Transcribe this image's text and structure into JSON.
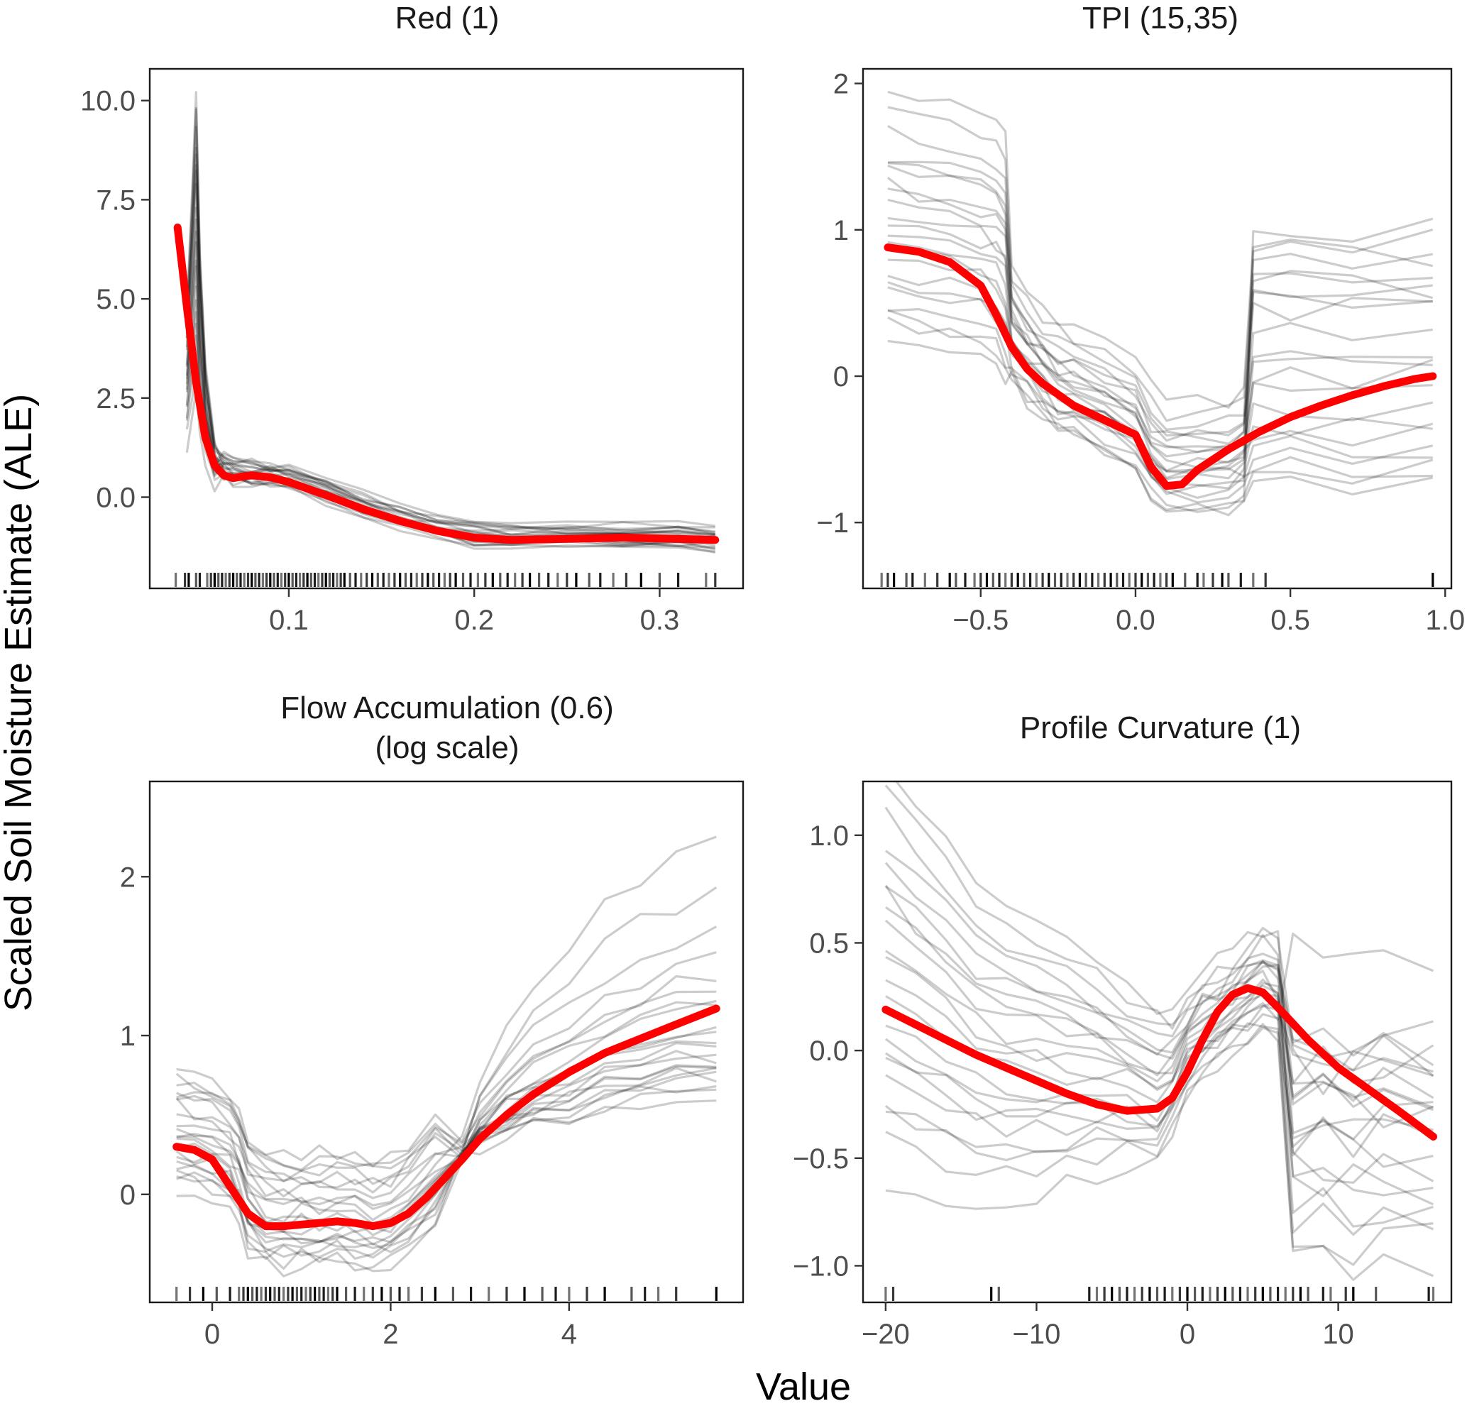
{
  "ylabel": "Scaled Soil Moisture Estimate (ALE)",
  "xlabel": "Value",
  "colors": {
    "ale_line": "#ff0000",
    "ice_lines": "#000000",
    "rug": "#000000",
    "frame": "#1a1a1a"
  },
  "chart_data": [
    {
      "type": "line",
      "title": "Red (1)",
      "xlim": [
        0.025,
        0.345
      ],
      "ylim": [
        -2.3,
        10.8
      ],
      "x_ticks": [
        0.1,
        0.2,
        0.3
      ],
      "x_tick_labels": [
        "0.1",
        "0.2",
        "0.3"
      ],
      "y_ticks": [
        0,
        2.5,
        5,
        7.5,
        10
      ],
      "y_tick_labels": [
        "0.0",
        "2.5",
        "5.0",
        "7.5",
        "10.0"
      ],
      "ale_curve": {
        "x": [
          0.04,
          0.045,
          0.05,
          0.055,
          0.06,
          0.065,
          0.07,
          0.075,
          0.08,
          0.09,
          0.1,
          0.12,
          0.14,
          0.16,
          0.18,
          0.2,
          0.22,
          0.25,
          0.28,
          0.31,
          0.33
        ],
        "y": [
          6.8,
          4.8,
          2.9,
          1.5,
          0.8,
          0.55,
          0.48,
          0.52,
          0.55,
          0.5,
          0.38,
          0.05,
          -0.3,
          -0.6,
          -0.85,
          -1.02,
          -1.08,
          -1.05,
          -1.02,
          -1.05,
          -1.08
        ]
      },
      "ice_shape": {
        "x": [
          0.045,
          0.048,
          0.05,
          0.052,
          0.055,
          0.06,
          0.065,
          0.07,
          0.08,
          0.09,
          0.1,
          0.12,
          0.14,
          0.16,
          0.18,
          0.2,
          0.22,
          0.25,
          0.28,
          0.31,
          0.33
        ],
        "y": [
          4.5,
          7.5,
          9.7,
          6.0,
          3.2,
          1.2,
          0.7,
          0.6,
          0.55,
          0.52,
          0.42,
          0.1,
          -0.25,
          -0.55,
          -0.8,
          -1.0,
          -1.06,
          -1.05,
          -1.04,
          -1.06,
          -1.08
        ],
        "offsets": [
          -0.5,
          -0.4,
          -0.3,
          -0.25,
          -0.2,
          -0.15,
          -0.1,
          -0.05,
          0,
          0.05,
          0.1,
          0.15,
          0.2,
          0.25,
          0.3,
          0.35,
          0.4,
          0.45,
          0.5,
          0.55,
          0.6,
          0.7
        ],
        "early_scale": [
          0.3,
          0.5,
          0.7,
          0.9,
          1.0,
          0.85,
          0.6,
          0.45,
          0.75,
          1.05,
          0.35,
          0.8,
          0.95,
          0.55,
          0.65,
          1.0,
          0.4,
          0.9,
          0.7,
          0.5,
          0.85,
          0.6
        ]
      },
      "rug": [
        0.039,
        0.044,
        0.046,
        0.05,
        0.052,
        0.056,
        0.058,
        0.06,
        0.062,
        0.064,
        0.066,
        0.068,
        0.07,
        0.072,
        0.074,
        0.076,
        0.078,
        0.08,
        0.082,
        0.084,
        0.086,
        0.088,
        0.09,
        0.092,
        0.094,
        0.096,
        0.098,
        0.1,
        0.102,
        0.104,
        0.106,
        0.108,
        0.11,
        0.112,
        0.114,
        0.116,
        0.118,
        0.12,
        0.122,
        0.124,
        0.126,
        0.128,
        0.13,
        0.133,
        0.136,
        0.139,
        0.142,
        0.145,
        0.148,
        0.151,
        0.154,
        0.157,
        0.16,
        0.163,
        0.166,
        0.169,
        0.172,
        0.175,
        0.178,
        0.181,
        0.184,
        0.187,
        0.19,
        0.194,
        0.198,
        0.202,
        0.206,
        0.21,
        0.214,
        0.218,
        0.222,
        0.226,
        0.23,
        0.235,
        0.24,
        0.245,
        0.25,
        0.255,
        0.262,
        0.268,
        0.275,
        0.282,
        0.29,
        0.3,
        0.31,
        0.325,
        0.33
      ]
    },
    {
      "type": "line",
      "title": "TPI (15,35)",
      "xlim": [
        -0.88,
        1.02
      ],
      "ylim": [
        -1.45,
        2.1
      ],
      "x_ticks": [
        -0.5,
        0,
        0.5,
        1
      ],
      "x_tick_labels": [
        "−0.5",
        "0.0",
        "0.5",
        "1.0"
      ],
      "y_ticks": [
        -1,
        0,
        1,
        2
      ],
      "y_tick_labels": [
        "−1",
        "0",
        "1",
        "2"
      ],
      "ale_curve": {
        "x": [
          -0.8,
          -0.7,
          -0.6,
          -0.5,
          -0.45,
          -0.4,
          -0.35,
          -0.3,
          -0.2,
          -0.1,
          0,
          0.05,
          0.1,
          0.15,
          0.2,
          0.3,
          0.4,
          0.5,
          0.6,
          0.7,
          0.8,
          0.9,
          0.96
        ],
        "y": [
          0.88,
          0.85,
          0.78,
          0.62,
          0.42,
          0.2,
          0.05,
          -0.05,
          -0.2,
          -0.3,
          -0.4,
          -0.62,
          -0.75,
          -0.74,
          -0.64,
          -0.5,
          -0.38,
          -0.28,
          -0.2,
          -0.13,
          -0.07,
          -0.02,
          0
        ]
      },
      "ice_shape": {
        "x": [
          -0.8,
          -0.7,
          -0.6,
          -0.5,
          -0.45,
          -0.42,
          -0.4,
          -0.35,
          -0.3,
          -0.25,
          -0.2,
          -0.1,
          0,
          0.05,
          0.1,
          0.2,
          0.3,
          0.35,
          0.38,
          0.5,
          0.7,
          0.96
        ],
        "y": [
          0.8,
          0.75,
          0.72,
          0.68,
          0.62,
          0.5,
          0.2,
          0.05,
          -0.05,
          -0.15,
          -0.2,
          -0.3,
          -0.4,
          -0.6,
          -0.7,
          -0.7,
          -0.7,
          -0.65,
          0.2,
          0.2,
          0.2,
          0.2
        ],
        "offsets": [
          -0.5,
          -0.4,
          -0.3,
          -0.2,
          -0.1,
          0,
          0.1,
          0.2,
          0.3,
          0.4,
          0.5,
          0.6,
          0.7,
          0.85,
          1.0,
          1.15,
          -0.45,
          -0.15,
          0.05,
          0.25,
          0.45,
          0.65
        ],
        "tail_levels": [
          -0.75,
          -0.65,
          -0.55,
          -0.45,
          -0.35,
          -0.2,
          0,
          0.15,
          0.3,
          0.45,
          0.55,
          0.6,
          0.65,
          0.7,
          0.8,
          0.85,
          0.9,
          1.0,
          -0.6,
          -0.4,
          -0.1,
          0.1
        ]
      },
      "rug": [
        -0.82,
        -0.8,
        -0.78,
        -0.74,
        -0.72,
        -0.68,
        -0.64,
        -0.6,
        -0.58,
        -0.55,
        -0.52,
        -0.5,
        -0.48,
        -0.46,
        -0.44,
        -0.42,
        -0.4,
        -0.38,
        -0.36,
        -0.34,
        -0.32,
        -0.3,
        -0.28,
        -0.26,
        -0.24,
        -0.22,
        -0.2,
        -0.18,
        -0.16,
        -0.14,
        -0.12,
        -0.1,
        -0.08,
        -0.06,
        -0.04,
        -0.02,
        0,
        0.02,
        0.04,
        0.06,
        0.08,
        0.1,
        0.12,
        0.16,
        0.2,
        0.22,
        0.25,
        0.28,
        0.3,
        0.34,
        0.38,
        0.42,
        0.96
      ]
    },
    {
      "type": "line",
      "title": "Flow Accumulation (0.6)",
      "subtitle": "(log scale)",
      "xlim": [
        -0.7,
        5.95
      ],
      "ylim": [
        -0.68,
        2.6
      ],
      "x_ticks": [
        0,
        2,
        4
      ],
      "x_tick_labels": [
        "0",
        "2",
        "4"
      ],
      "y_ticks": [
        0,
        1,
        2
      ],
      "y_tick_labels": [
        "0",
        "1",
        "2"
      ],
      "ale_curve": {
        "x": [
          -0.4,
          -0.2,
          0,
          0.2,
          0.4,
          0.6,
          0.8,
          1.0,
          1.2,
          1.4,
          1.6,
          1.8,
          2.0,
          2.2,
          2.4,
          2.6,
          2.8,
          3.0,
          3.3,
          3.6,
          4.0,
          4.4,
          4.8,
          5.2,
          5.65
        ],
        "y": [
          0.3,
          0.28,
          0.22,
          0.05,
          -0.12,
          -0.2,
          -0.2,
          -0.19,
          -0.18,
          -0.17,
          -0.18,
          -0.2,
          -0.18,
          -0.12,
          -0.02,
          0.1,
          0.22,
          0.35,
          0.5,
          0.63,
          0.77,
          0.89,
          0.98,
          1.07,
          1.17
        ]
      },
      "ice_shape": {
        "x": [
          -0.4,
          -0.2,
          0,
          0.2,
          0.3,
          0.4,
          0.6,
          0.8,
          1.0,
          1.2,
          1.4,
          1.6,
          1.8,
          2.0,
          2.2,
          2.5,
          2.8,
          3.0,
          3.3,
          3.6,
          4.0,
          4.4,
          4.8,
          5.2,
          5.65
        ],
        "y": [
          0.3,
          0.28,
          0.25,
          0.2,
          0.1,
          -0.1,
          -0.2,
          -0.22,
          -0.2,
          -0.2,
          -0.2,
          -0.22,
          -0.23,
          -0.2,
          -0.12,
          0.05,
          0.25,
          0.4,
          0.55,
          0.65,
          0.75,
          0.85,
          0.92,
          0.97,
          1.0
        ],
        "offsets": [
          -0.25,
          -0.2,
          -0.15,
          -0.1,
          -0.05,
          0,
          0.05,
          0.1,
          0.15,
          0.2,
          0.25,
          0.3,
          0.35,
          0.4,
          0.45,
          -0.18,
          -0.08,
          0.12,
          0.28,
          -0.12,
          0.02,
          0.38
        ],
        "tail_scale": [
          0.5,
          0.6,
          0.65,
          0.7,
          0.75,
          0.8,
          0.85,
          0.9,
          0.95,
          1.0,
          1.1,
          1.2,
          1.3,
          1.45,
          1.6,
          1.8,
          2.1,
          2.5,
          0.55,
          0.78,
          1.05,
          1.38
        ]
      },
      "rug": [
        -0.4,
        -0.25,
        -0.1,
        0.05,
        0.2,
        0.3,
        0.35,
        0.4,
        0.45,
        0.5,
        0.55,
        0.6,
        0.65,
        0.7,
        0.75,
        0.8,
        0.85,
        0.9,
        0.95,
        1.0,
        1.05,
        1.1,
        1.15,
        1.2,
        1.25,
        1.3,
        1.35,
        1.4,
        1.5,
        1.6,
        1.7,
        1.8,
        1.9,
        2.0,
        2.1,
        2.2,
        2.35,
        2.5,
        2.7,
        2.9,
        3.1,
        3.3,
        3.5,
        3.7,
        3.85,
        4.0,
        4.2,
        4.4,
        4.7,
        4.85,
        5.0,
        5.2,
        5.65
      ]
    },
    {
      "type": "line",
      "title": "Profile Curvature (1)",
      "xlim": [
        -21.5,
        17.5
      ],
      "ylim": [
        -1.17,
        1.25
      ],
      "x_ticks": [
        -20,
        -10,
        0,
        10
      ],
      "x_tick_labels": [
        "−20",
        "−10",
        "0",
        "10"
      ],
      "y_ticks": [
        -1,
        -0.5,
        0,
        0.5,
        1
      ],
      "y_tick_labels": [
        "−1.0",
        "−0.5",
        "0.0",
        "0.5",
        "1.0"
      ],
      "ale_curve": {
        "x": [
          -20,
          -18,
          -16,
          -14,
          -12,
          -10,
          -8,
          -6,
          -4,
          -2,
          -1,
          0,
          1,
          2,
          3,
          4,
          5,
          6,
          8,
          10,
          12,
          14,
          16.3
        ],
        "y": [
          0.19,
          0.12,
          0.05,
          -0.02,
          -0.08,
          -0.14,
          -0.2,
          -0.25,
          -0.28,
          -0.27,
          -0.22,
          -0.1,
          0.05,
          0.18,
          0.26,
          0.29,
          0.27,
          0.2,
          0.05,
          -0.08,
          -0.18,
          -0.28,
          -0.4
        ]
      },
      "ice_shape": {
        "x": [
          -20,
          -18,
          -16,
          -14,
          -12,
          -10,
          -8,
          -6,
          -4,
          -2,
          -1,
          0,
          1,
          2,
          3,
          4,
          5,
          6,
          7,
          9,
          11,
          13,
          16.3
        ],
        "y": [
          0.3,
          0.2,
          0.1,
          0,
          -0.05,
          -0.08,
          -0.1,
          -0.12,
          -0.15,
          -0.2,
          -0.15,
          0,
          0.1,
          0.15,
          0.2,
          0.25,
          0.3,
          0.25,
          0.1,
          -0.1,
          -0.3,
          -0.35,
          -0.35
        ],
        "offsets": [
          -0.75,
          -0.6,
          -0.45,
          -0.35,
          -0.25,
          -0.15,
          -0.05,
          0.05,
          0.15,
          0.25,
          0.35,
          0.45,
          0.55,
          0.65,
          0.75,
          0.85,
          -0.5,
          -0.2,
          0.1,
          0.4,
          -0.3,
          0.3
        ],
        "tail_levels": [
          -1.0,
          -0.9,
          -0.8,
          -0.7,
          -0.6,
          -0.5,
          -0.4,
          -0.3,
          -0.2,
          -0.1,
          0,
          0.05,
          -0.25,
          -0.15,
          0.05,
          -0.45,
          -0.35,
          0,
          -0.05,
          -0.15,
          0.43,
          -0.65
        ]
      },
      "rug": [
        -20,
        -19.5,
        -13,
        -12.5,
        -6.5,
        -6,
        -5.5,
        -5,
        -4.5,
        -4,
        -3.5,
        -3,
        -2.5,
        -2,
        -1.5,
        -1,
        -0.5,
        0,
        0.5,
        1,
        1.5,
        2,
        2.5,
        3,
        3.5,
        4,
        4.5,
        5,
        5.5,
        6,
        6.5,
        7,
        7.5,
        8,
        9,
        9.5,
        10.5,
        11,
        12.5,
        16,
        16.3
      ]
    }
  ]
}
